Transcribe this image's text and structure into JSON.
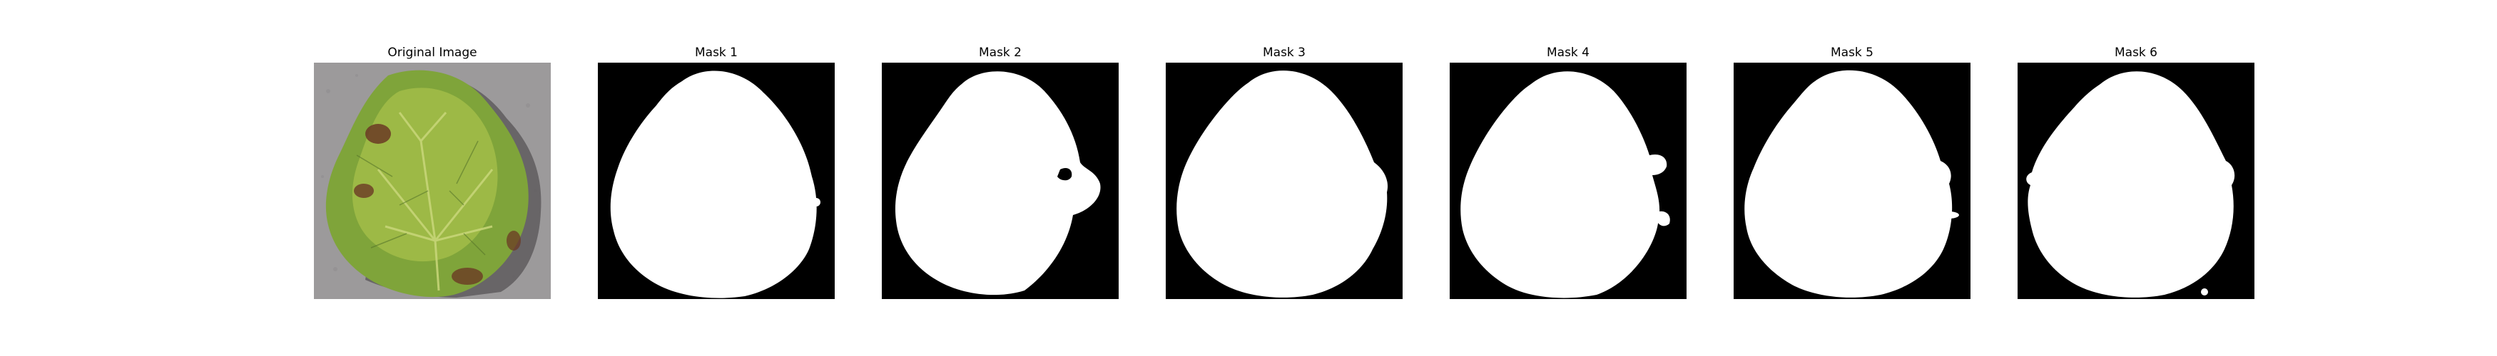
{
  "figure": {
    "background": "#ffffff",
    "panels": [
      {
        "title": "Original Image",
        "kind": "photo"
      },
      {
        "title": "Mask 1",
        "kind": "mask"
      },
      {
        "title": "Mask 2",
        "kind": "mask"
      },
      {
        "title": "Mask 3",
        "kind": "mask"
      },
      {
        "title": "Mask 4",
        "kind": "mask"
      },
      {
        "title": "Mask 5",
        "kind": "mask"
      },
      {
        "title": "Mask 6",
        "kind": "mask"
      }
    ]
  },
  "colors": {
    "mask_background": "#000000",
    "mask_foreground": "#ffffff",
    "photo_background": "#9c9a9b",
    "leaf_green": "#7fa43a",
    "leaf_light": "#a9c24c",
    "leaf_dark": "#56752a",
    "lesion_brown": "#6b3a24",
    "vein": "#c9d77a",
    "shadow": "#5f5c5e"
  }
}
